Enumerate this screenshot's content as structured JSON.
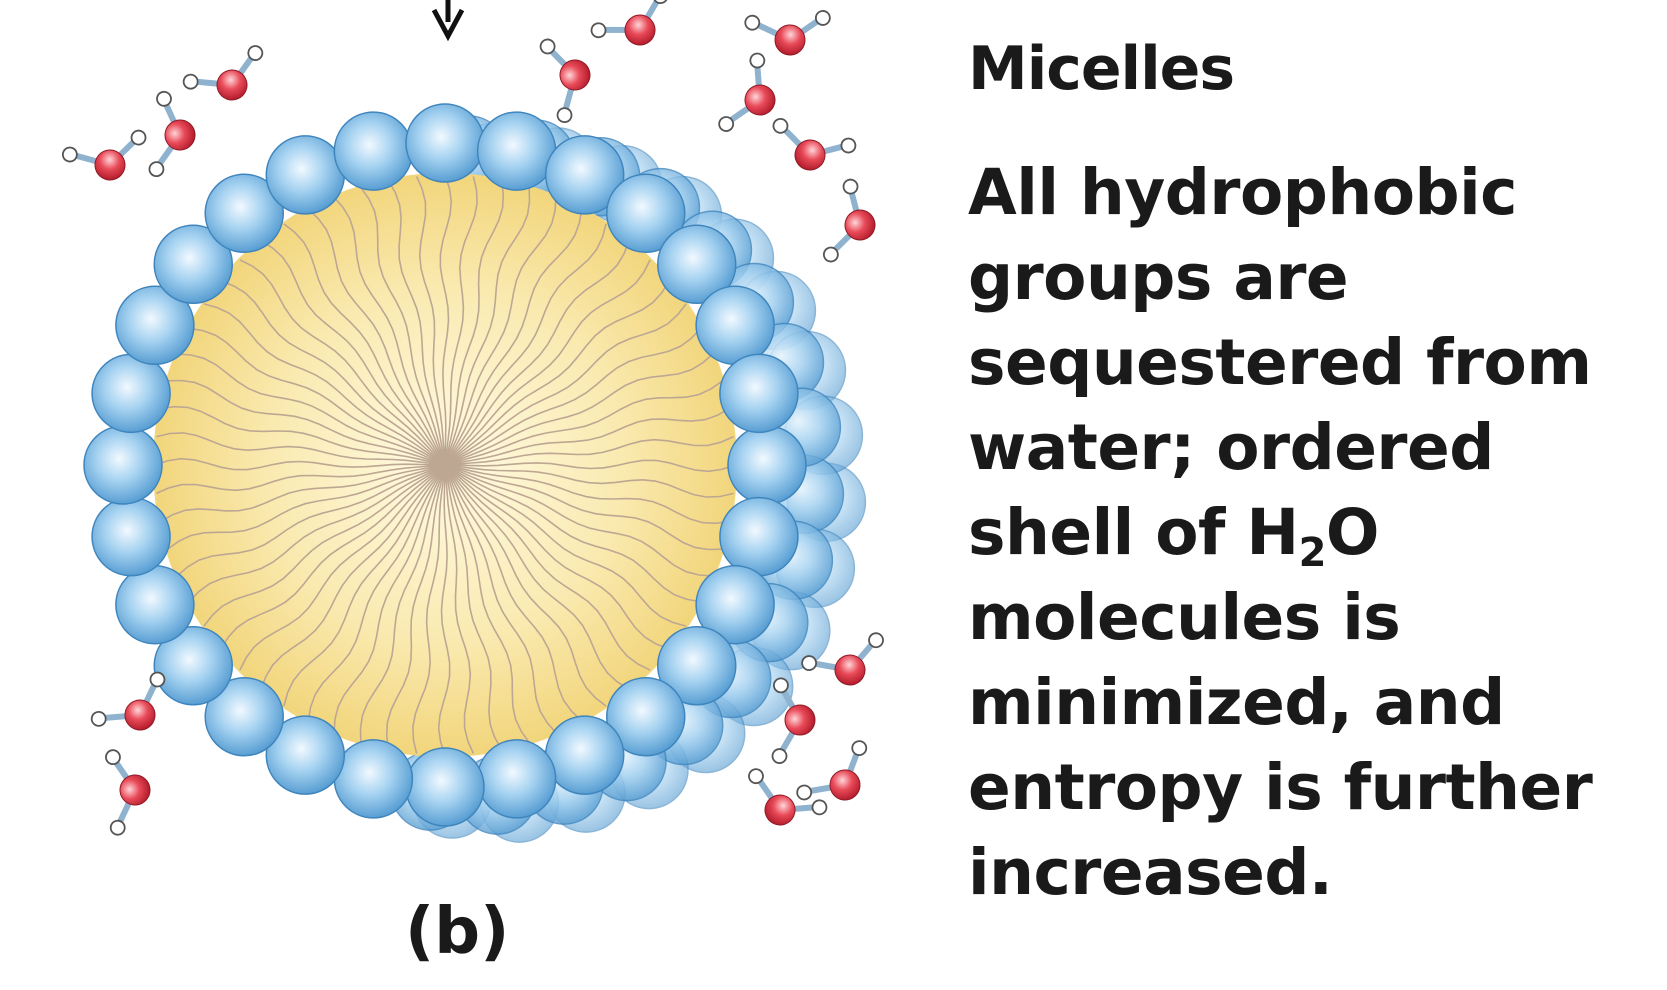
{
  "title": "Micelles",
  "description_lines": [
    "All hydrophobic",
    "groups are",
    "sequestered from",
    "water;  ordered",
    "shell of H",
    "molecules is",
    "minimized, and",
    "entropy is further",
    "increased."
  ],
  "formula": {
    "subscript": "2",
    "suffix": "O"
  },
  "panel_label": "(b)",
  "colors": {
    "headgroup": "#5fa8dc",
    "headgroup_highlight": "#f2f9ff",
    "core_center": "#fffbe6",
    "core_edge": "#f3d877",
    "tail": "#bda793",
    "oxygen": "#e23c4c",
    "hydrogen": "#ffffff",
    "text": "#1a1a1a"
  }
}
